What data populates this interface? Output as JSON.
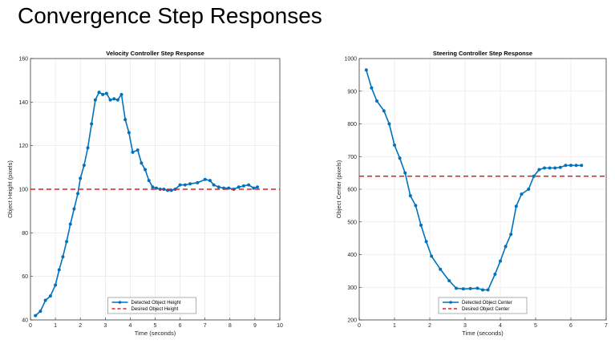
{
  "slide": {
    "title": "Convergence Step Responses"
  },
  "colors": {
    "series": "#0072BD",
    "reference": "#E02020",
    "grid": "#E3E3E3",
    "axis": "#262626"
  },
  "chart_data": [
    {
      "type": "line",
      "title": "Velocity Controller Step Response",
      "xlabel": "Time (seconds)",
      "ylabel": "Object Height (pixels)",
      "xlim": [
        0,
        10
      ],
      "ylim": [
        40,
        160
      ],
      "xticks": [
        0,
        1,
        2,
        3,
        4,
        5,
        6,
        7,
        8,
        9,
        10
      ],
      "yticks": [
        40,
        60,
        80,
        100,
        120,
        140,
        160
      ],
      "grid": true,
      "legend_position": "bottom-center",
      "series": [
        {
          "name": "Detected Object Height",
          "style": "line-with-markers",
          "x": [
            0.2,
            0.4,
            0.6,
            0.8,
            1.0,
            1.15,
            1.3,
            1.45,
            1.6,
            1.75,
            1.9,
            2.0,
            2.15,
            2.3,
            2.45,
            2.6,
            2.75,
            2.9,
            3.05,
            3.2,
            3.35,
            3.5,
            3.65,
            3.8,
            3.95,
            4.1,
            4.3,
            4.45,
            4.6,
            4.75,
            4.9,
            5.05,
            5.2,
            5.35,
            5.5,
            5.65,
            5.8,
            6.0,
            6.2,
            6.4,
            6.7,
            7.0,
            7.2,
            7.35,
            7.55,
            7.75,
            7.95,
            8.15,
            8.35,
            8.55,
            8.75,
            8.95,
            9.1
          ],
          "y": [
            42,
            44,
            49,
            51,
            56,
            63,
            69,
            76,
            84,
            91,
            98,
            105,
            111,
            119,
            130,
            141,
            144.5,
            143.5,
            144,
            141,
            141.5,
            141,
            143.5,
            132,
            126,
            117,
            118,
            112,
            109,
            104,
            101,
            100.5,
            100,
            100,
            99.5,
            99.5,
            100,
            102,
            102,
            102.5,
            103,
            104.5,
            104,
            102,
            101,
            100.5,
            100.5,
            100,
            101,
            101.5,
            102,
            100.5,
            101
          ]
        },
        {
          "name": "Desired Object Height",
          "style": "dashed",
          "x": [
            0,
            10
          ],
          "y": [
            100,
            100
          ]
        }
      ]
    },
    {
      "type": "line",
      "title": "Steering Controller Step Response",
      "xlabel": "Time (seconds)",
      "ylabel": "Object Center (pixels)",
      "xlim": [
        0,
        7
      ],
      "ylim": [
        200,
        1000
      ],
      "xticks": [
        0,
        1,
        2,
        3,
        4,
        5,
        6,
        7
      ],
      "yticks": [
        200,
        300,
        400,
        500,
        600,
        700,
        800,
        900,
        1000
      ],
      "grid": true,
      "legend_position": "bottom-center",
      "series": [
        {
          "name": "Detected Object Center",
          "style": "line-with-markers",
          "x": [
            0.2,
            0.35,
            0.5,
            0.7,
            0.85,
            1.0,
            1.15,
            1.3,
            1.45,
            1.6,
            1.75,
            1.9,
            2.05,
            2.3,
            2.55,
            2.75,
            2.95,
            3.15,
            3.35,
            3.5,
            3.65,
            3.85,
            4.0,
            4.15,
            4.3,
            4.45,
            4.6,
            4.8,
            4.95,
            5.1,
            5.25,
            5.4,
            5.55,
            5.7,
            5.85,
            6.0,
            6.15,
            6.3
          ],
          "y": [
            965,
            910,
            870,
            840,
            800,
            735,
            695,
            650,
            580,
            550,
            490,
            440,
            395,
            355,
            320,
            297,
            295,
            296,
            297,
            292,
            292,
            340,
            380,
            425,
            462,
            548,
            585,
            600,
            640,
            660,
            665,
            665,
            665,
            667,
            673,
            673,
            673,
            673
          ]
        },
        {
          "name": "Desired Object Center",
          "style": "dashed",
          "x": [
            0,
            7
          ],
          "y": [
            640,
            640
          ]
        }
      ]
    }
  ]
}
